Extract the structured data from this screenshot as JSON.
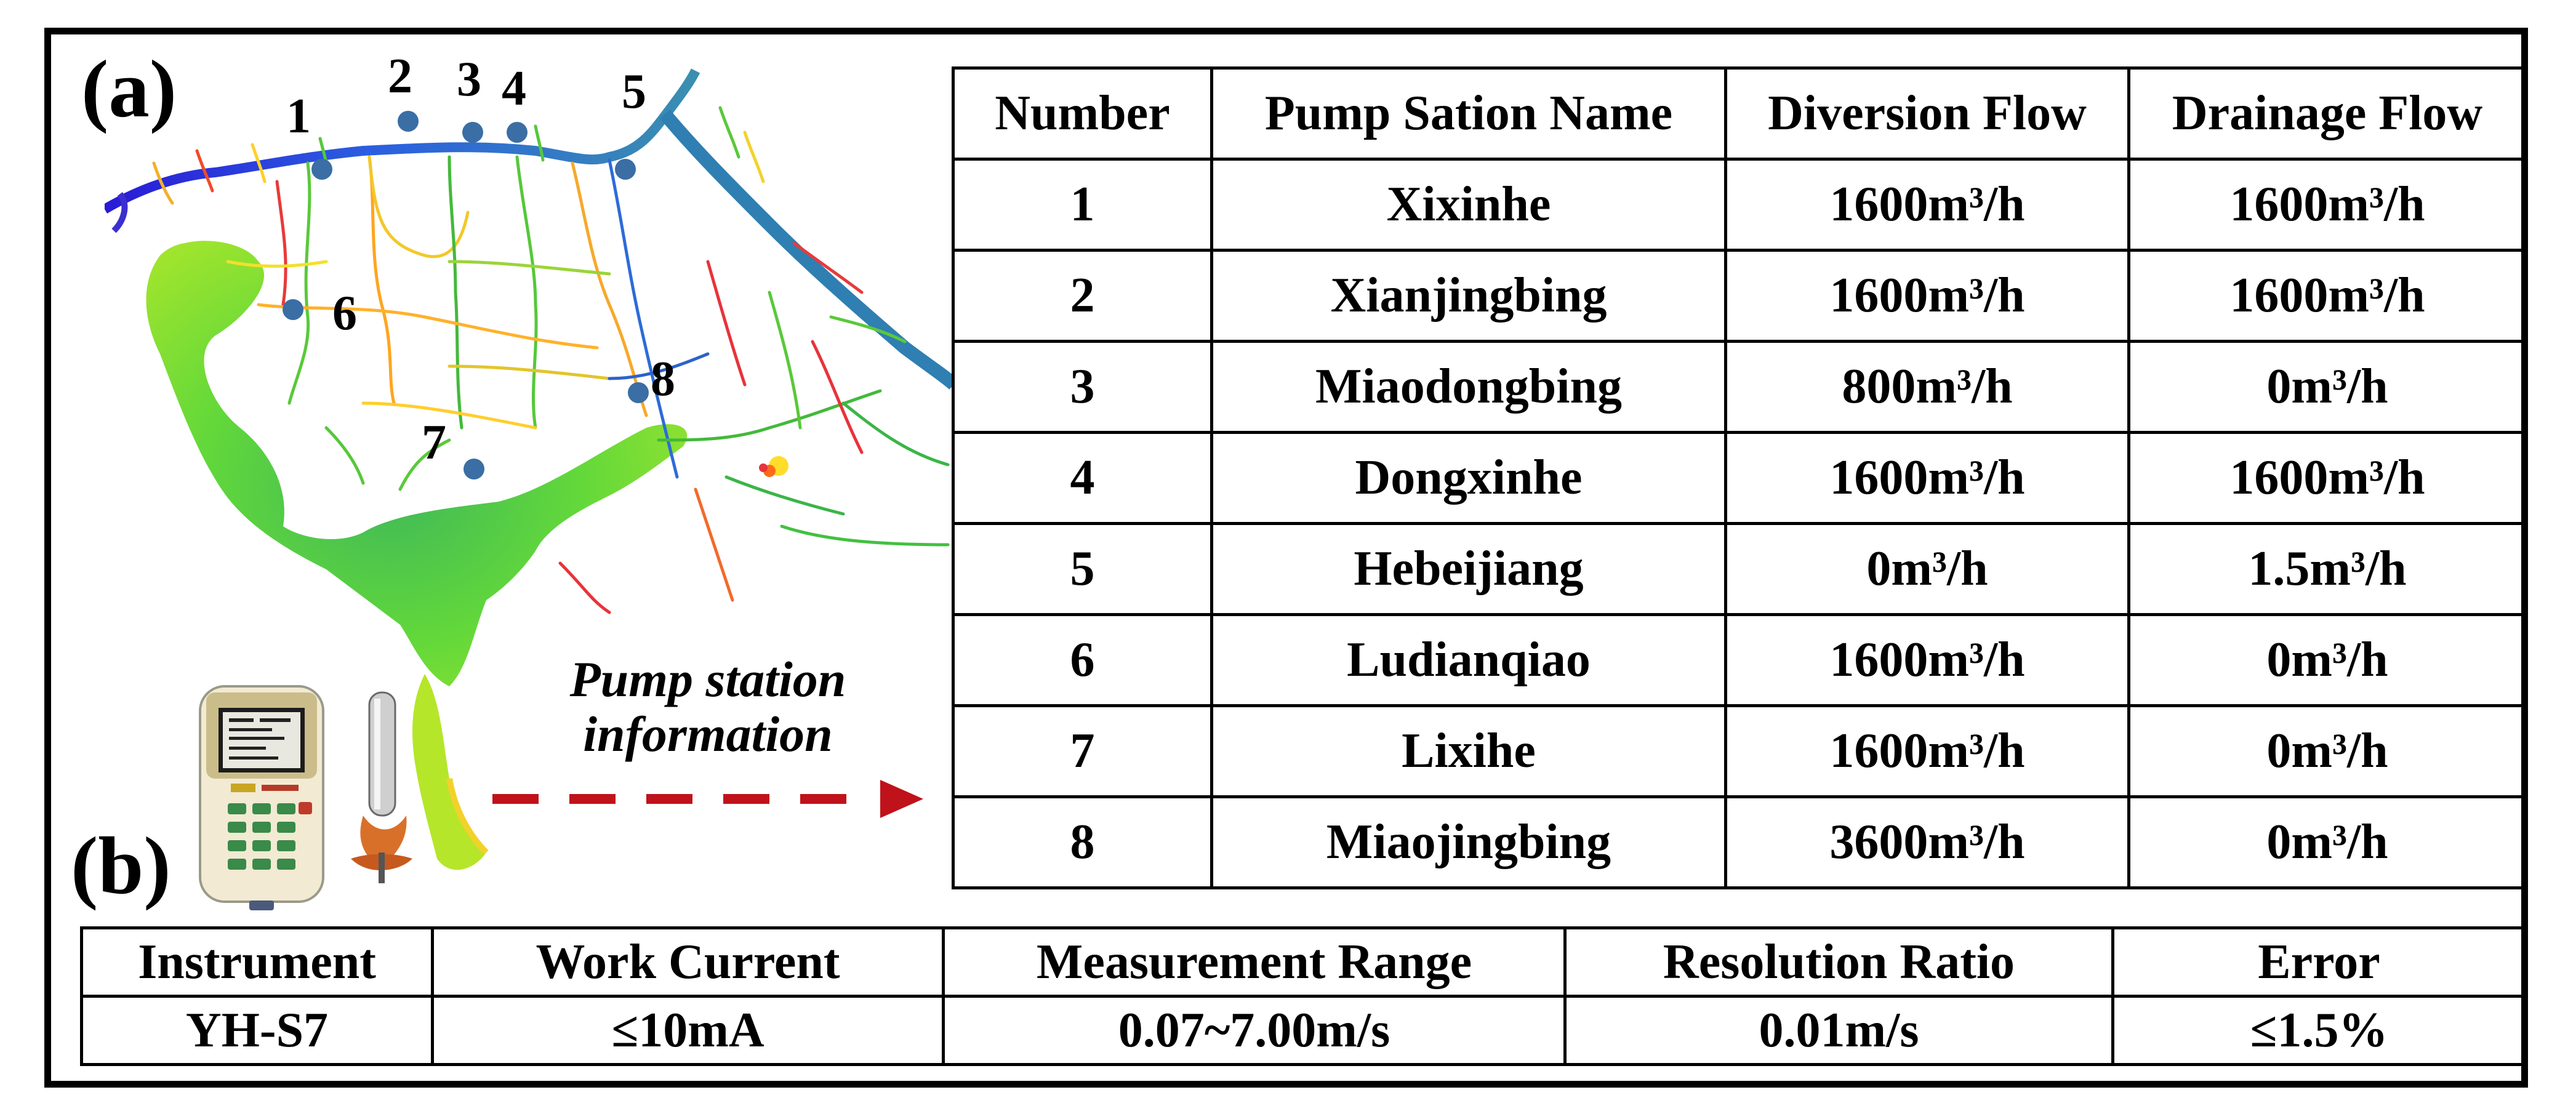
{
  "panel_labels": {
    "a": "(a)",
    "b": "(b)"
  },
  "map": {
    "stations": [
      {
        "number": "1"
      },
      {
        "number": "2"
      },
      {
        "number": "3"
      },
      {
        "number": "4"
      },
      {
        "number": "5"
      },
      {
        "number": "6"
      },
      {
        "number": "7"
      },
      {
        "number": "8"
      }
    ],
    "colors": {
      "marker": "#3a6ea5",
      "river_blue": "#2233cc",
      "lake_green": "#4cd040",
      "channel_red": "#e8333a"
    }
  },
  "callout": {
    "line1": "Pump station",
    "line2": "information",
    "arrow_color": "#c0121b"
  },
  "pump_table": {
    "headers": [
      "Number",
      "Pump Sation Name",
      "Diversion Flow",
      "Drainage Flow"
    ],
    "rows": [
      {
        "number": "1",
        "name": "Xixinhe",
        "diversion": "1600m³/h",
        "drainage": "1600m³/h"
      },
      {
        "number": "2",
        "name": "Xianjingbing",
        "diversion": "1600m³/h",
        "drainage": "1600m³/h"
      },
      {
        "number": "3",
        "name": "Miaodongbing",
        "diversion": "800m³/h",
        "drainage": "0m³/h"
      },
      {
        "number": "4",
        "name": "Dongxinhe",
        "diversion": "1600m³/h",
        "drainage": "1600m³/h"
      },
      {
        "number": "5",
        "name": "Hebeijiang",
        "diversion": "0m³/h",
        "drainage": "1.5m³/h"
      },
      {
        "number": "6",
        "name": "Ludianqiao",
        "diversion": "1600m³/h",
        "drainage": "0m³/h"
      },
      {
        "number": "7",
        "name": "Lixihe",
        "diversion": "1600m³/h",
        "drainage": "0m³/h"
      },
      {
        "number": "8",
        "name": "Miaojingbing",
        "diversion": "3600m³/h",
        "drainage": "0m³/h"
      }
    ]
  },
  "instrument_table": {
    "headers": [
      "Instrument",
      "Work Current",
      "Measurement Range",
      "Resolution Ratio",
      "Error"
    ],
    "values": [
      "YH-S7",
      "≤10mA",
      "0.07~7.00m/s",
      "0.01m/s",
      "≤1.5%"
    ]
  }
}
